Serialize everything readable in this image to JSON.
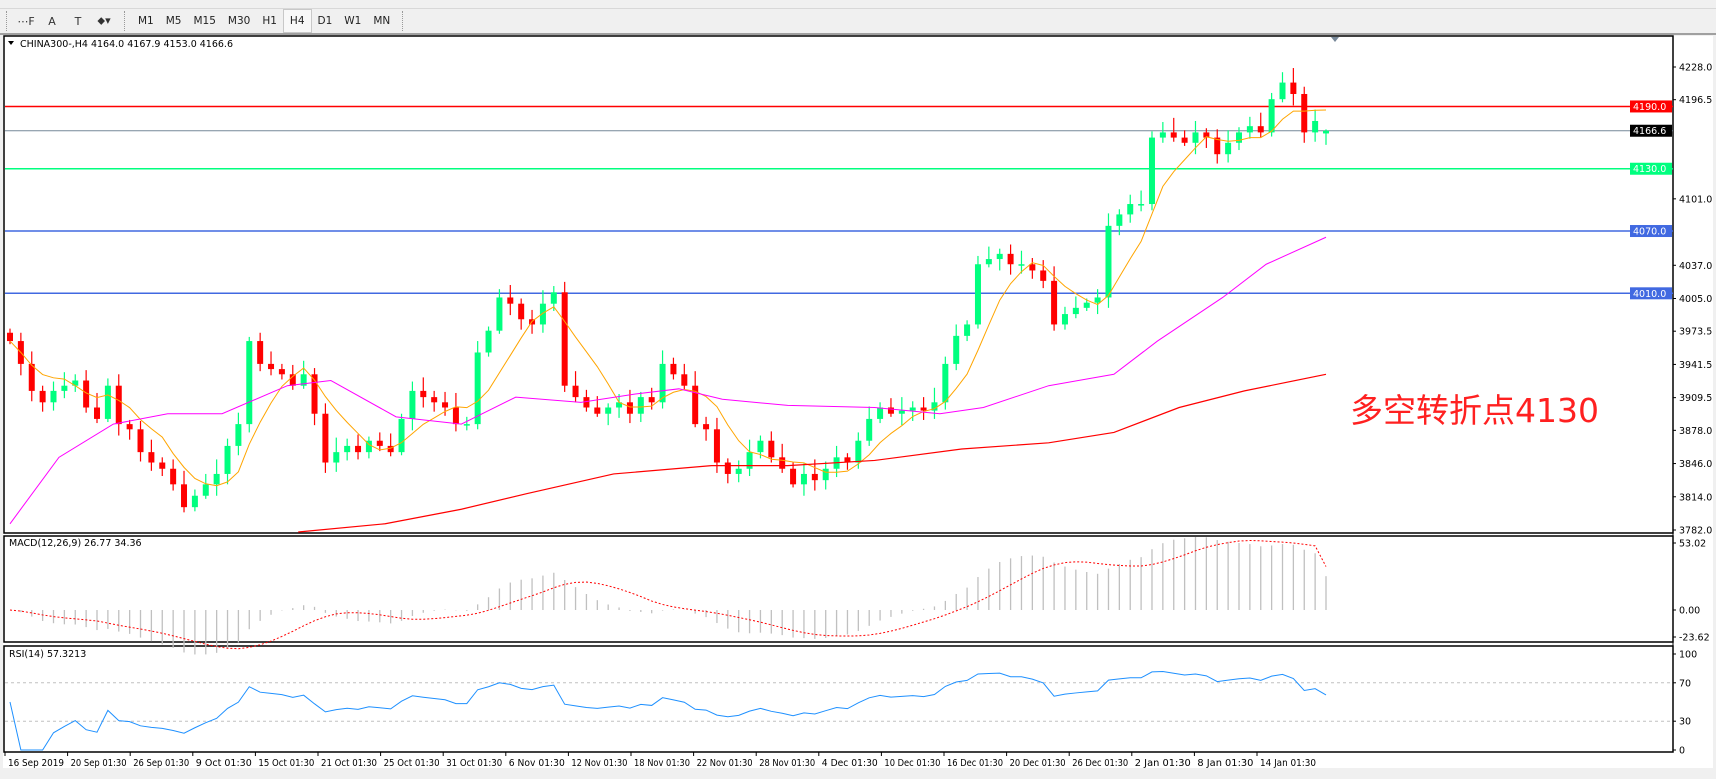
{
  "toolbar": {
    "tools": [
      {
        "name": "fibonacci-tool",
        "glyph": "⋯F"
      },
      {
        "name": "text-tool",
        "glyph": "A"
      },
      {
        "name": "text-label-tool",
        "glyph": "T"
      },
      {
        "name": "arrows-tool",
        "glyph": "⬥▾"
      }
    ],
    "timeframes": [
      "M1",
      "M5",
      "M15",
      "M30",
      "H1",
      "H4",
      "D1",
      "W1",
      "MN"
    ],
    "selected_timeframe": "H4"
  },
  "chart": {
    "header": "CHINA300-,H4  4164.0 4167.9 4153.0 4166.6",
    "annotation": "多空转折点4130",
    "colors": {
      "bull": "#00ff7f",
      "bear": "#ff0000",
      "ma_fast": "#ffa500",
      "ma_mid": "#ff00ff",
      "ma_slow": "#ff0000",
      "macd_hist": "#c0c0c0",
      "macd_signal": "#ff0000",
      "rsi": "#1e90ff"
    }
  },
  "chart_data": [
    {
      "type": "candlestick",
      "symbol": "CHINA300-",
      "timeframe": "H4",
      "ylim": [
        3782.0,
        4228.0
      ],
      "y_ticks": [
        "4228.0",
        "4196.5",
        "4101.0",
        "4037.0",
        "4005.0",
        "3973.5",
        "3941.5",
        "3909.5",
        "3878.0",
        "3846.0",
        "3814.0",
        "3782.0"
      ],
      "x_ticks": [
        "16 Sep 2019",
        "20 Sep 01:30",
        "26 Sep 01:30",
        "9 Oct 01:30",
        "15 Oct 01:30",
        "21 Oct 01:30",
        "25 Oct 01:30",
        "31 Oct 01:30",
        "6 Nov 01:30",
        "12 Nov 01:30",
        "18 Nov 01:30",
        "22 Nov 01:30",
        "28 Nov 01:30",
        "4 Dec 01:30",
        "10 Dec 01:30",
        "16 Dec 01:30",
        "20 Dec 01:30",
        "26 Dec 01:30",
        "2 Jan 01:30",
        "8 Jan 01:30",
        "14 Jan 01:30"
      ],
      "last_bar": {
        "open": 4164.0,
        "high": 4167.9,
        "low": 4153.0,
        "close": 4166.6
      },
      "closes": [
        3964,
        3942,
        3916,
        3905,
        3916,
        3921,
        3926,
        3900,
        3889,
        3921,
        3884,
        3879,
        3857,
        3847,
        3841,
        3826,
        3804,
        3815,
        3826,
        3836,
        3863,
        3884,
        3964,
        3942,
        3937,
        3932,
        3921,
        3932,
        3894,
        3847,
        3857,
        3863,
        3857,
        3868,
        3863,
        3857,
        3889,
        3916,
        3910,
        3905,
        3900,
        3884,
        3884,
        3953,
        3974,
        4006,
        4000,
        3985,
        3980,
        4000,
        4011,
        3921,
        3910,
        3900,
        3894,
        3900,
        3905,
        3894,
        3910,
        3905,
        3942,
        3932,
        3921,
        3884,
        3879,
        3847,
        3836,
        3841,
        3857,
        3868,
        3852,
        3841,
        3826,
        3836,
        3830,
        3841,
        3852,
        3847,
        3868,
        3889,
        3900,
        3894,
        3897,
        3900,
        3897,
        3905,
        3942,
        3969,
        3980,
        4038,
        4043,
        4048,
        4038,
        4038,
        4032,
        4022,
        3980,
        3990,
        3996,
        4001,
        4006,
        4075,
        4086,
        4096,
        4096,
        4160,
        4165,
        4160,
        4155,
        4165,
        4160,
        4144,
        4155,
        4165,
        4171,
        4165,
        4197,
        4213,
        4202,
        4165,
        4176,
        4166.6
      ],
      "horizontal_levels": [
        {
          "value": 4190.0,
          "label": "4190.0",
          "color": "#ff0000"
        },
        {
          "value": 4166.6,
          "label": "4166.6",
          "color": "#000000",
          "line_color": "#778899"
        },
        {
          "value": 4130.0,
          "label": "4130.0",
          "color": "#00ff7f"
        },
        {
          "value": 4070.0,
          "label": "4070.0",
          "color": "#4169e1"
        },
        {
          "value": 4010.0,
          "label": "4010.0",
          "color": "#4169e1"
        }
      ],
      "ma_mid_points": [
        [
          0,
          3788
        ],
        [
          4.5,
          3852
        ],
        [
          9.5,
          3884
        ],
        [
          14.5,
          3894
        ],
        [
          19.5,
          3894
        ],
        [
          25.5,
          3921
        ],
        [
          29.5,
          3926
        ],
        [
          35.5,
          3891
        ],
        [
          41.5,
          3884
        ],
        [
          46.5,
          3910
        ],
        [
          52.5,
          3905
        ],
        [
          57.5,
          3913
        ],
        [
          61.5,
          3918
        ],
        [
          65.5,
          3908
        ],
        [
          71.5,
          3902
        ],
        [
          79.5,
          3900
        ],
        [
          85.5,
          3894
        ],
        [
          89.5,
          3900
        ],
        [
          95.5,
          3921
        ],
        [
          101.5,
          3932
        ],
        [
          105.5,
          3964
        ],
        [
          111.5,
          4006
        ],
        [
          115.5,
          4038
        ],
        [
          121,
          4064
        ]
      ],
      "ma_slow_points": [
        [
          26.5,
          3778
        ],
        [
          34.5,
          3788
        ],
        [
          41.5,
          3802
        ],
        [
          47.5,
          3817
        ],
        [
          55.5,
          3836
        ],
        [
          64.5,
          3844
        ],
        [
          71.5,
          3844
        ],
        [
          79.5,
          3849
        ],
        [
          87.5,
          3860
        ],
        [
          95.5,
          3866
        ],
        [
          101.5,
          3876
        ],
        [
          107.5,
          3900
        ],
        [
          113.5,
          3916
        ],
        [
          121,
          3932
        ]
      ]
    },
    {
      "type": "bar",
      "name": "MACD(12,26,9) 26.77 34.36",
      "ylim": [
        -23.62,
        53.02
      ],
      "y_ticks": [
        "53.02",
        "0.00",
        "-23.62"
      ],
      "values": {
        "macd": 26.77,
        "signal": 34.36
      }
    },
    {
      "type": "line",
      "name": "RSI(14) 57.3213",
      "ylim": [
        0,
        100
      ],
      "y_ticks": [
        "100",
        "70",
        "30",
        "0"
      ],
      "value": 57.3213
    }
  ]
}
